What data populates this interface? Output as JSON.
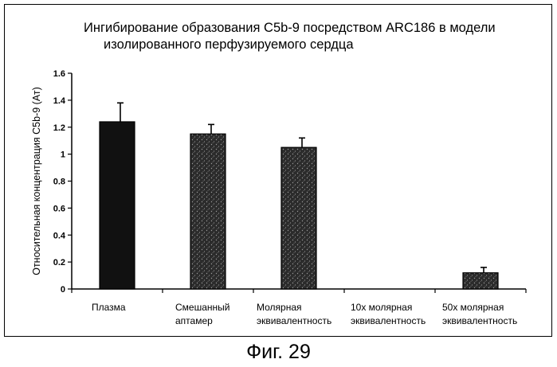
{
  "chart_data": {
    "type": "bar",
    "title": "Ингибирование образования C5b-9 посредством ARC186 в модели изолированного перфузируемого сердца",
    "title_lines": [
      "Ингибирование образования C5b-9 посредством ARC186 в модели",
      "изолированного перфузируемого сердца"
    ],
    "ylabel": "Относительная концентрация C5b-9 (Ат)",
    "xlabel": "",
    "ylim": [
      0,
      1.6
    ],
    "yticks": [
      "0",
      "0.2",
      "0.4",
      "0.6",
      "0.8",
      "1",
      "1.2",
      "1.4",
      "1.6"
    ],
    "categories": [
      "Плазма",
      "Смешанный аптамер",
      "Молярная эквивалентность",
      "10x молярная эквивалентность",
      "50x молярная эквивалентность"
    ],
    "category_lines": [
      [
        "Плазма"
      ],
      [
        "Смешанный",
        "аптамер"
      ],
      [
        "Молярная",
        "эквивалентность"
      ],
      [
        "10x молярная",
        "эквивалентность"
      ],
      [
        "50x молярная",
        "эквивалентность"
      ]
    ],
    "values": [
      1.24,
      1.15,
      1.05,
      0,
      0.12
    ],
    "errors": [
      0.14,
      0.07,
      0.07,
      0,
      0.04
    ],
    "colors": {
      "bar_solid": "#111111",
      "bar_stipple": "#2b2b2b",
      "stipple_dot": "#9a9a9a",
      "axis": "#000000"
    },
    "grid": false,
    "legend": "none"
  },
  "figure": {
    "caption": "Фиг. 29"
  }
}
